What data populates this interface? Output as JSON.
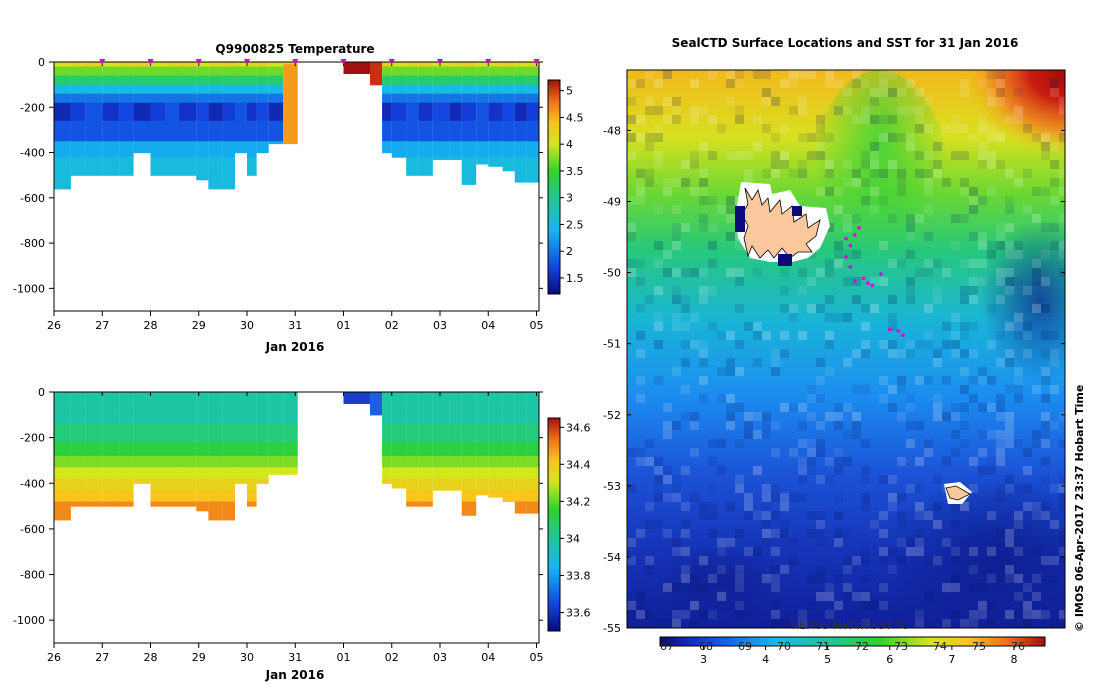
{
  "chart_data": [
    {
      "type": "heatmap",
      "title": "Q9900825  Temperature",
      "xlabel": "Jan 2016",
      "ylabel": "",
      "x_ticks": [
        "26",
        "27",
        "28",
        "29",
        "30",
        "31",
        "01",
        "02",
        "03",
        "04",
        "05"
      ],
      "y_ticks": [
        0,
        -200,
        -400,
        -600,
        -800,
        -1000
      ],
      "ylim": [
        -1100,
        0
      ],
      "colorbar": {
        "ticks": [
          "1.5",
          "2",
          "2.5",
          "3",
          "3.5",
          "4",
          "4.5",
          "5"
        ],
        "range": [
          1.2,
          5.2
        ]
      },
      "profile_marker_color": "#d000d0",
      "profiles": [
        {
          "x": 0.0,
          "depth": 560
        },
        {
          "x": 0.35,
          "depth": 500
        },
        {
          "x": 0.65,
          "depth": 500
        },
        {
          "x": 1.0,
          "depth": 500
        },
        {
          "x": 1.35,
          "depth": 500
        },
        {
          "x": 1.65,
          "depth": 400
        },
        {
          "x": 2.0,
          "depth": 500
        },
        {
          "x": 2.3,
          "depth": 500
        },
        {
          "x": 2.6,
          "depth": 500
        },
        {
          "x": 2.95,
          "depth": 520
        },
        {
          "x": 3.2,
          "depth": 560
        },
        {
          "x": 3.5,
          "depth": 560
        },
        {
          "x": 3.75,
          "depth": 400
        },
        {
          "x": 4.0,
          "depth": 500
        },
        {
          "x": 4.2,
          "depth": 400
        },
        {
          "x": 4.45,
          "depth": 360
        },
        {
          "x": 4.75,
          "depth": 360
        },
        {
          "x": 6.0,
          "depth": 50
        },
        {
          "x": 6.3,
          "depth": 50
        },
        {
          "x": 6.55,
          "depth": 100
        },
        {
          "x": 6.8,
          "depth": 400
        },
        {
          "x": 7.0,
          "depth": 420
        },
        {
          "x": 7.3,
          "depth": 500
        },
        {
          "x": 7.55,
          "depth": 500
        },
        {
          "x": 7.85,
          "depth": 430
        },
        {
          "x": 8.2,
          "depth": 430
        },
        {
          "x": 8.45,
          "depth": 540
        },
        {
          "x": 8.75,
          "depth": 450
        },
        {
          "x": 9.0,
          "depth": 460
        },
        {
          "x": 9.3,
          "depth": 480
        },
        {
          "x": 9.55,
          "depth": 530
        },
        {
          "x": 9.8,
          "depth": 530
        }
      ]
    },
    {
      "type": "heatmap",
      "title": "",
      "xlabel": "Jan 2016",
      "ylabel": "",
      "x_ticks": [
        "26",
        "27",
        "28",
        "29",
        "30",
        "31",
        "01",
        "02",
        "03",
        "04",
        "05"
      ],
      "y_ticks": [
        0,
        -200,
        -400,
        -600,
        -800,
        -1000
      ],
      "ylim": [
        -1100,
        0
      ],
      "colorbar": {
        "ticks": [
          "33.6",
          "33.8",
          "34",
          "34.2",
          "34.4",
          "34.6"
        ],
        "range": [
          33.5,
          34.65
        ]
      }
    },
    {
      "type": "heatmap",
      "title": "SealCTD Surface Locations and SST for 31 Jan 2016",
      "xlabel": "",
      "ylabel": "",
      "lat_ticks": [
        "-48",
        "-49",
        "-50",
        "-51",
        "-52",
        "-53",
        "-54",
        "-55"
      ],
      "lat_range": [
        -55,
        -47.15
      ],
      "colorbar": {
        "ticks": [
          "3",
          "4",
          "5",
          "6",
          "7",
          "8"
        ],
        "overprint": [
          "67",
          "68",
          "69",
          "70",
          "71",
          "72",
          "73",
          "74",
          "75",
          "76"
        ],
        "range": [
          2.3,
          8.5
        ]
      },
      "source_label": "REMSS MW-IR SST °C",
      "seal_positions": [
        [
          -49.37,
          0.83
        ],
        [
          -49.47,
          0.82
        ],
        [
          -49.62,
          0.81
        ],
        [
          -49.78,
          0.8
        ],
        [
          -49.92,
          0.81
        ],
        [
          -50.08,
          0.84
        ],
        [
          -50.12,
          0.82
        ],
        [
          -50.15,
          0.85
        ],
        [
          -50.18,
          0.86
        ],
        [
          -50.02,
          0.88
        ],
        [
          -50.8,
          0.9
        ],
        [
          -50.88,
          0.93
        ],
        [
          -50.82,
          0.92
        ],
        [
          -49.52,
          0.8
        ]
      ]
    }
  ],
  "credit": "© IMOS 06-Apr-2017 23:37 Hobart Time",
  "colors": {
    "land": "#fac89c",
    "marker": "#e000e0",
    "missing": "#ffffff"
  }
}
